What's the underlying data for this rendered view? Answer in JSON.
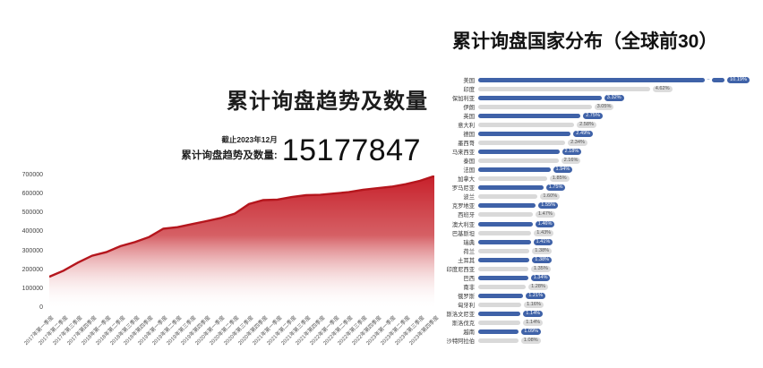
{
  "colors": {
    "bar_blue": "#3f62a8",
    "bar_gray": "#d9d9d9",
    "badge_gray_bg": "#dcdcdc",
    "area_red": "#c7202a",
    "area_line": "#b5161d"
  },
  "chart_data": [
    {
      "type": "area",
      "title": "累计询盘趋势及数量",
      "annotation": {
        "as_of": "截止2023年12月",
        "label": "累计询盘趋势及数量:",
        "value": "15177847"
      },
      "ylim": [
        0,
        700000
      ],
      "yticks": [
        0,
        100000,
        200000,
        300000,
        400000,
        500000,
        600000,
        700000
      ],
      "grid": false,
      "x": [
        "2017年第一季度",
        "2017年第二季度",
        "2017年第三季度",
        "2017年第四季度",
        "2018年第一季度",
        "2018年第二季度",
        "2018年第三季度",
        "2018年第四季度",
        "2019年第一季度",
        "2019年第二季度",
        "2019年第三季度",
        "2019年第四季度",
        "2020年第一季度",
        "2020年第二季度",
        "2020年第三季度",
        "2020年第四季度",
        "2021年第一季度",
        "2021年第二季度",
        "2021年第三季度",
        "2021年第四季度",
        "2022年第一季度",
        "2022年第二季度",
        "2022年第三季度",
        "2022年第四季度",
        "2023年第一季度",
        "2023年第二季度",
        "2023年第三季度",
        "2023年第四季度"
      ],
      "values": [
        165000,
        197000,
        240000,
        276000,
        295000,
        327000,
        348000,
        375000,
        419000,
        427000,
        443000,
        459000,
        475000,
        498000,
        549000,
        570000,
        573000,
        586000,
        596000,
        598000,
        605000,
        612000,
        625000,
        633000,
        641000,
        654000,
        672000,
        697000
      ]
    },
    {
      "type": "bar",
      "orientation": "horizontal",
      "title": "累计询盘国家分布（全球前30）",
      "unit": "%",
      "legend": false,
      "note": "bars alternate blue/gray; first bar (美国) drawn with an axis break",
      "categories": [
        "美国",
        "印度",
        "保加利亚",
        "伊朗",
        "英国",
        "意大利",
        "德国",
        "墨西哥",
        "马来西亚",
        "泰国",
        "法国",
        "加拿大",
        "罗马尼亚",
        "波兰",
        "克罗地亚",
        "西班牙",
        "澳大利亚",
        "巴基斯坦",
        "瑞典",
        "荷兰",
        "土耳其",
        "印度尼西亚",
        "巴西",
        "南非",
        "俄罗斯",
        "匈牙利",
        "斯洛文尼亚",
        "斯洛伐克",
        "越南",
        "沙特阿拉伯"
      ],
      "values": [
        10.19,
        4.62,
        3.32,
        3.05,
        2.75,
        2.58,
        2.49,
        2.34,
        2.18,
        2.16,
        1.94,
        1.85,
        1.75,
        1.6,
        1.55,
        1.47,
        1.46,
        1.43,
        1.41,
        1.38,
        1.38,
        1.35,
        1.34,
        1.28,
        1.21,
        1.16,
        1.14,
        1.14,
        1.09,
        1.08
      ]
    }
  ]
}
